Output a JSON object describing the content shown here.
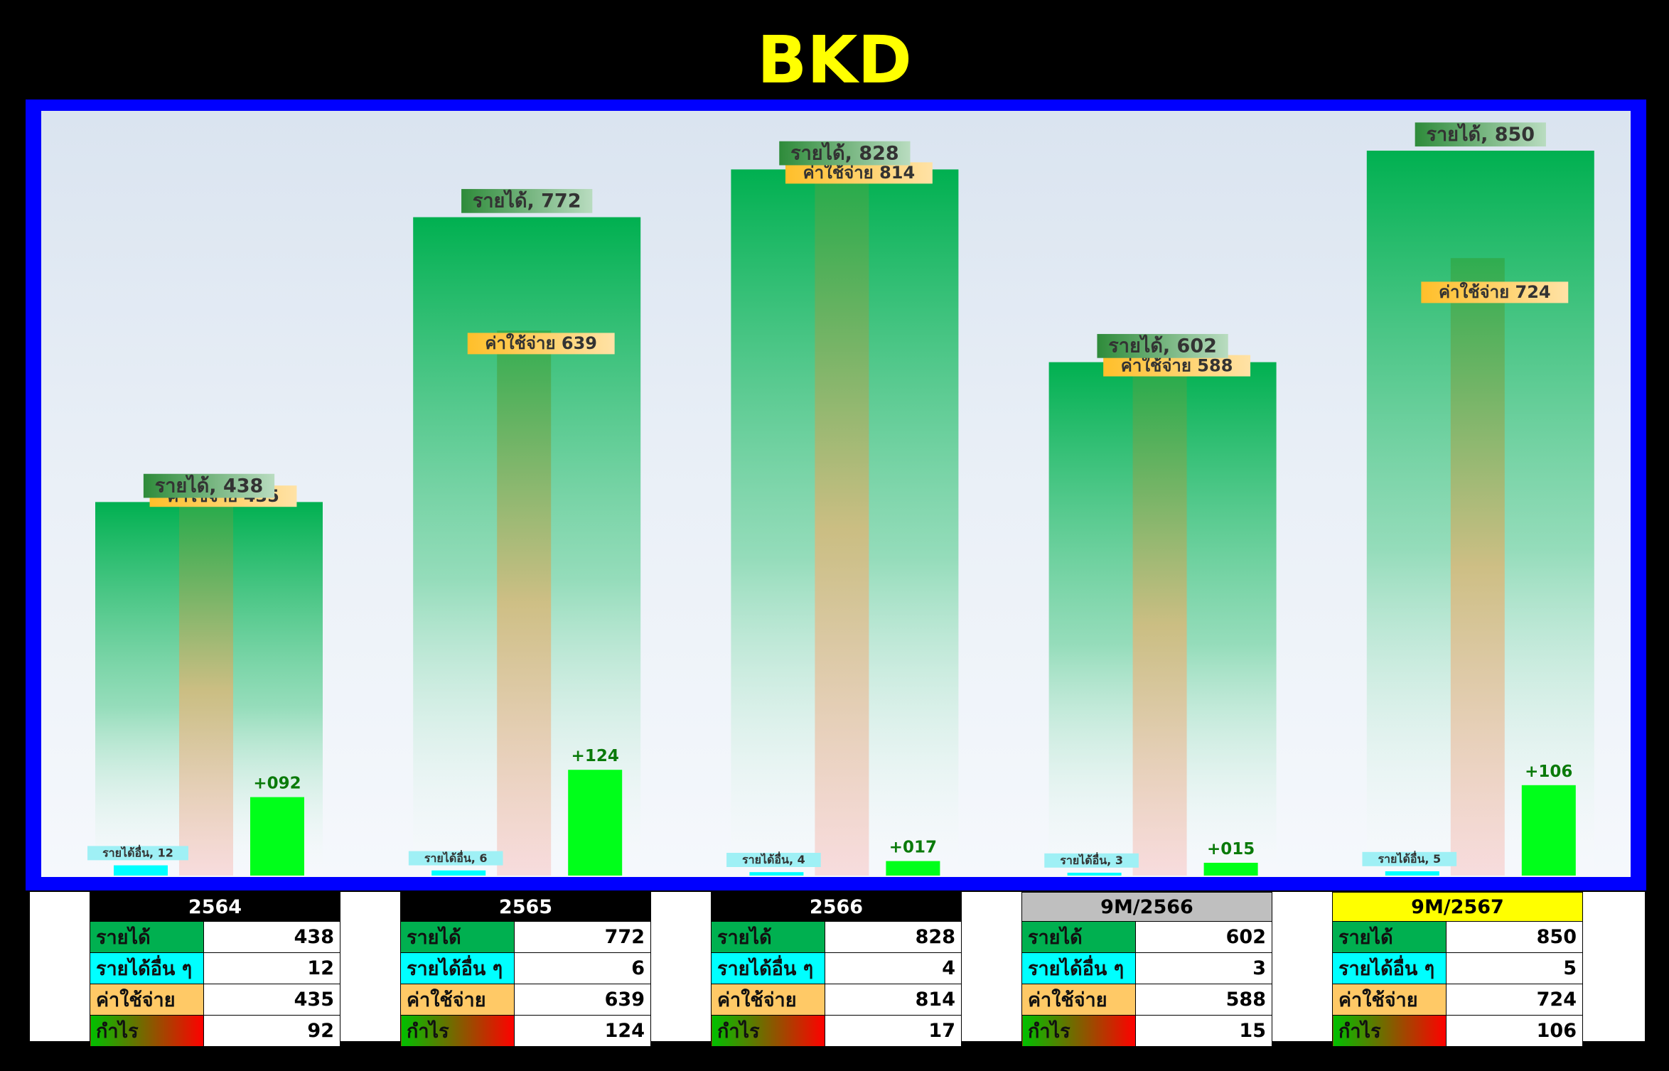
{
  "title": "BKD",
  "chart_data": {
    "type": "bar",
    "categories": [
      "2564",
      "2565",
      "2566",
      "9M/2566",
      "9M/2567"
    ],
    "ylim": [
      0,
      900
    ],
    "series": [
      {
        "name": "รายได้",
        "values": [
          438,
          772,
          828,
          602,
          850
        ],
        "label_prefix": "รายได้, ",
        "label_values": [
          "438",
          "772",
          "828",
          "602",
          "850"
        ]
      },
      {
        "name": "ค่าใช้จ่าย",
        "values": [
          435,
          639,
          814,
          588,
          724
        ],
        "label_prefix": "ค่าใช้จ่าย ",
        "label_values": [
          "435",
          "639",
          "814",
          "588",
          "724"
        ]
      },
      {
        "name": "รายได้อื่น",
        "values": [
          12,
          6,
          4,
          3,
          5
        ],
        "label_prefix": "รายได้อื่น, ",
        "label_values": [
          "12",
          "6",
          "4",
          "3",
          "5"
        ]
      },
      {
        "name": "กำไร",
        "values": [
          92,
          124,
          17,
          15,
          106
        ],
        "label_values": [
          "+092",
          "+124",
          "+017",
          "+015",
          "+106"
        ]
      }
    ],
    "colors": {
      "revenue": "#00b050",
      "expense": "#ffc966",
      "other": "#00ffff",
      "profit": "#00ff1a"
    }
  },
  "tables": [
    {
      "header": "2564",
      "style": "black",
      "rows": [
        {
          "label": "รายได้",
          "value": "438"
        },
        {
          "label": "รายได้อื่น ๆ",
          "value": "12"
        },
        {
          "label": "ค่าใช้จ่าย",
          "value": "435"
        },
        {
          "label": "กำไร",
          "value": "92"
        }
      ]
    },
    {
      "header": "2565",
      "style": "black",
      "rows": [
        {
          "label": "รายได้",
          "value": "772"
        },
        {
          "label": "รายได้อื่น ๆ",
          "value": "6"
        },
        {
          "label": "ค่าใช้จ่าย",
          "value": "639"
        },
        {
          "label": "กำไร",
          "value": "124"
        }
      ]
    },
    {
      "header": "2566",
      "style": "black",
      "rows": [
        {
          "label": "รายได้",
          "value": "828"
        },
        {
          "label": "รายได้อื่น ๆ",
          "value": "4"
        },
        {
          "label": "ค่าใช้จ่าย",
          "value": "814"
        },
        {
          "label": "กำไร",
          "value": "17"
        }
      ]
    },
    {
      "header": "9M/2566",
      "style": "gray",
      "rows": [
        {
          "label": "รายได้",
          "value": "602"
        },
        {
          "label": "รายได้อื่น ๆ",
          "value": "3"
        },
        {
          "label": "ค่าใช้จ่าย",
          "value": "588"
        },
        {
          "label": "กำไร",
          "value": "15"
        }
      ]
    },
    {
      "header": "9M/2567",
      "style": "yellow",
      "rows": [
        {
          "label": "รายได้",
          "value": "850"
        },
        {
          "label": "รายได้อื่น ๆ",
          "value": "5"
        },
        {
          "label": "ค่าใช้จ่าย",
          "value": "724"
        },
        {
          "label": "กำไร",
          "value": "106"
        }
      ]
    }
  ]
}
